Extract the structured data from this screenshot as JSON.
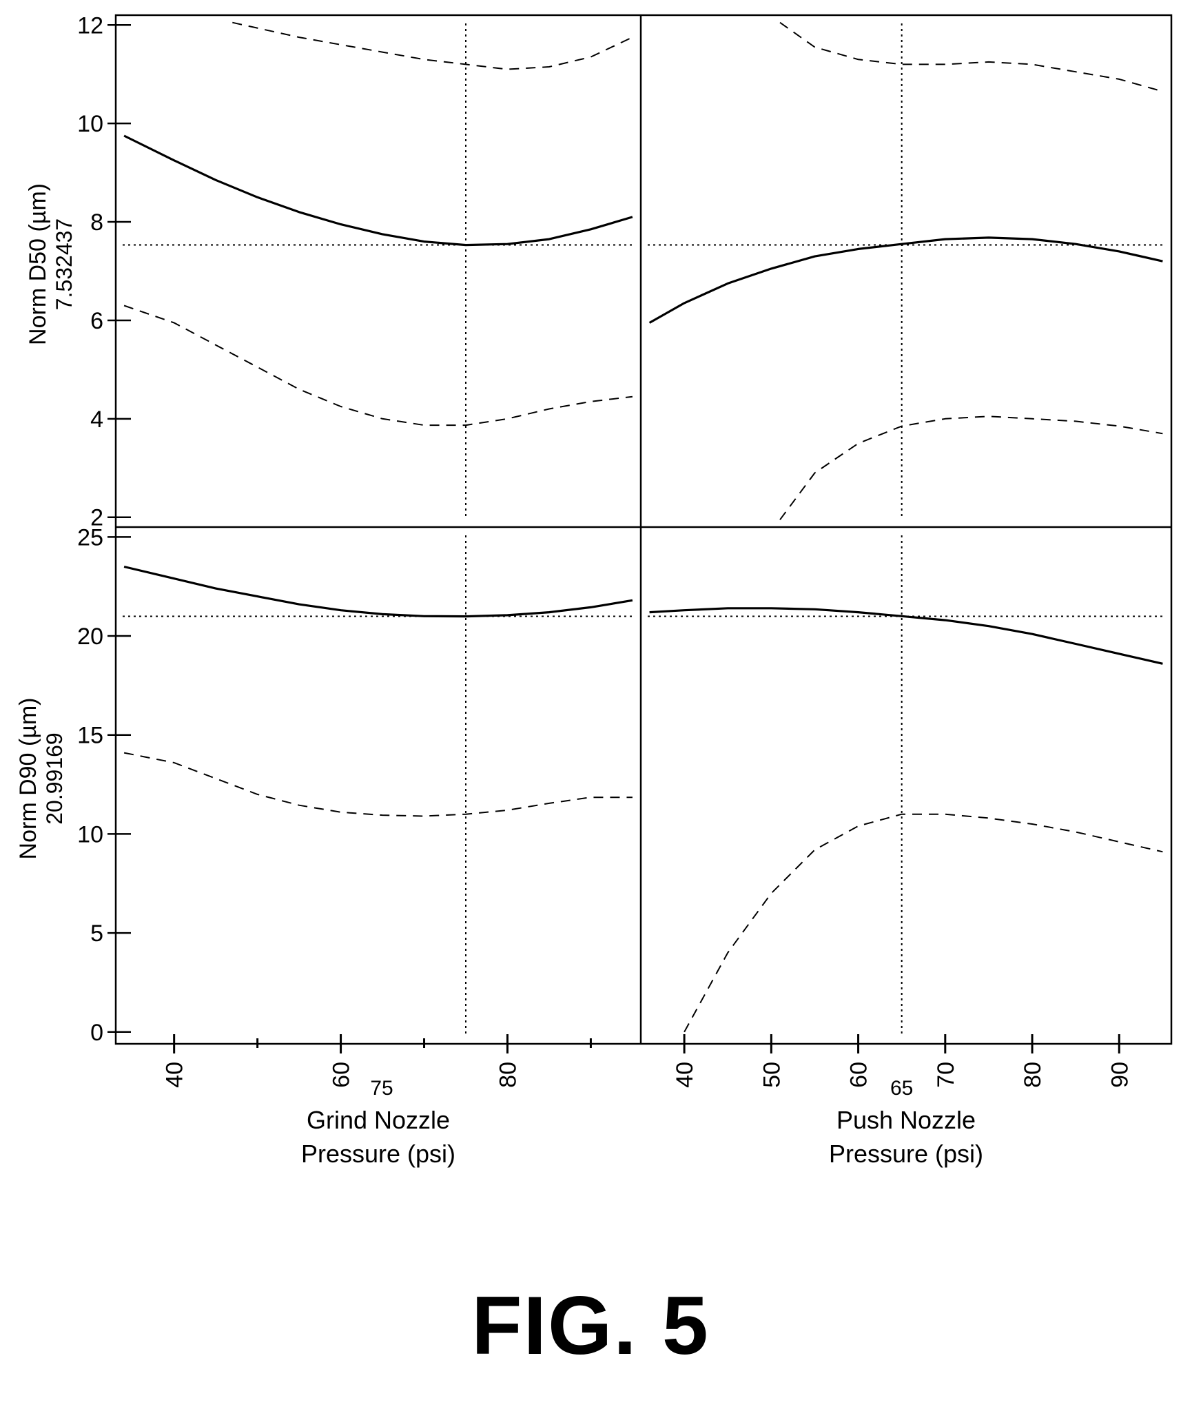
{
  "figure_caption": "FIG. 5",
  "chart_data": {
    "type": "line",
    "layout": "2x2 grid",
    "x_axes": [
      {
        "label_line1": "Grind Nozzle",
        "label_line2": "Pressure (psi)",
        "range": [
          33,
          96
        ],
        "ticks": [
          40,
          60,
          80
        ],
        "tick_labels": [
          "40",
          "60",
          "80"
        ],
        "minor_ticks": [
          50,
          70,
          90
        ],
        "current_value": 75,
        "current_label": "75"
      },
      {
        "label_line1": "Push Nozzle",
        "label_line2": "Pressure (psi)",
        "range": [
          35,
          96
        ],
        "ticks": [
          40,
          50,
          60,
          70,
          80,
          90
        ],
        "tick_labels": [
          "40",
          "50",
          "60",
          "70",
          "80",
          "90"
        ],
        "minor_ticks": [],
        "current_value": 65,
        "current_label": "65"
      }
    ],
    "y_axes": [
      {
        "label": "Norm D50 (µm)",
        "current_label": "7.532437",
        "current_value": 7.532437,
        "range": [
          1.8,
          12.2
        ],
        "ticks": [
          2,
          4,
          6,
          8,
          10,
          12
        ],
        "tick_labels": [
          "2",
          "4",
          "6",
          "8",
          "10",
          "12"
        ]
      },
      {
        "label": "Norm D90 (µm)",
        "current_label": "20.99169",
        "current_value": 20.99169,
        "range": [
          -0.6,
          25.5
        ],
        "ticks": [
          0,
          5,
          10,
          15,
          20,
          25
        ],
        "tick_labels": [
          "0",
          "5",
          "10",
          "15",
          "20",
          "25"
        ]
      }
    ],
    "panels": [
      {
        "row": 0,
        "col": 0,
        "series": [
          {
            "role": "prediction",
            "style": "solid",
            "x": [
              34,
              40,
              45,
              50,
              55,
              60,
              65,
              70,
              75,
              80,
              85,
              90,
              95
            ],
            "y": [
              9.75,
              9.25,
              8.85,
              8.5,
              8.2,
              7.95,
              7.75,
              7.6,
              7.53,
              7.55,
              7.65,
              7.85,
              8.1
            ]
          },
          {
            "role": "upper_ci",
            "style": "dashed",
            "x": [
              47,
              55,
              60,
              65,
              70,
              75,
              80,
              85,
              90,
              95
            ],
            "y": [
              12.05,
              11.75,
              11.6,
              11.45,
              11.3,
              11.2,
              11.1,
              11.15,
              11.35,
              11.75
            ]
          },
          {
            "role": "lower_ci",
            "style": "dashed",
            "x": [
              34,
              40,
              45,
              50,
              55,
              60,
              65,
              70,
              75,
              80,
              85,
              90,
              95
            ],
            "y": [
              6.3,
              5.95,
              5.5,
              5.05,
              4.6,
              4.25,
              4.0,
              3.87,
              3.87,
              4.0,
              4.2,
              4.35,
              4.45
            ]
          }
        ]
      },
      {
        "row": 0,
        "col": 1,
        "series": [
          {
            "role": "prediction",
            "style": "solid",
            "x": [
              36,
              40,
              45,
              50,
              55,
              60,
              65,
              70,
              75,
              80,
              85,
              90,
              95
            ],
            "y": [
              5.95,
              6.35,
              6.75,
              7.05,
              7.3,
              7.45,
              7.55,
              7.65,
              7.68,
              7.65,
              7.55,
              7.4,
              7.2
            ]
          },
          {
            "role": "upper_ci",
            "style": "dashed",
            "x": [
              51,
              55,
              60,
              65,
              70,
              75,
              80,
              85,
              90,
              95
            ],
            "y": [
              12.05,
              11.55,
              11.3,
              11.2,
              11.2,
              11.25,
              11.2,
              11.05,
              10.9,
              10.65
            ]
          },
          {
            "role": "lower_ci",
            "style": "dashed",
            "x": [
              51,
              55,
              60,
              65,
              70,
              75,
              80,
              85,
              90,
              95
            ],
            "y": [
              1.95,
              2.9,
              3.5,
              3.85,
              4.0,
              4.05,
              4.0,
              3.95,
              3.85,
              3.7
            ]
          }
        ]
      },
      {
        "row": 1,
        "col": 0,
        "series": [
          {
            "role": "prediction",
            "style": "solid",
            "x": [
              34,
              40,
              45,
              50,
              55,
              60,
              65,
              70,
              75,
              80,
              85,
              90,
              95
            ],
            "y": [
              23.5,
              22.9,
              22.4,
              22.0,
              21.6,
              21.3,
              21.1,
              21.0,
              20.99,
              21.05,
              21.2,
              21.45,
              21.8
            ]
          },
          {
            "role": "upper_ci",
            "style": "dashed",
            "x": [],
            "y": []
          },
          {
            "role": "lower_ci",
            "style": "dashed",
            "x": [
              34,
              40,
              45,
              50,
              55,
              60,
              65,
              70,
              75,
              80,
              85,
              90,
              95
            ],
            "y": [
              14.1,
              13.6,
              12.8,
              12.0,
              11.45,
              11.1,
              10.95,
              10.9,
              11.0,
              11.2,
              11.55,
              11.85,
              11.85
            ]
          }
        ]
      },
      {
        "row": 1,
        "col": 1,
        "series": [
          {
            "role": "prediction",
            "style": "solid",
            "x": [
              36,
              40,
              45,
              50,
              55,
              60,
              65,
              70,
              75,
              80,
              85,
              90,
              95
            ],
            "y": [
              21.2,
              21.3,
              21.4,
              21.4,
              21.35,
              21.2,
              21.0,
              20.8,
              20.5,
              20.1,
              19.6,
              19.1,
              18.6
            ]
          },
          {
            "role": "upper_ci",
            "style": "dashed",
            "x": [],
            "y": []
          },
          {
            "role": "lower_ci",
            "style": "dashed",
            "x": [
              40,
              45,
              50,
              55,
              60,
              65,
              70,
              75,
              80,
              85,
              90,
              95
            ],
            "y": [
              0.0,
              4.0,
              7.0,
              9.2,
              10.4,
              11.0,
              11.0,
              10.8,
              10.5,
              10.1,
              9.6,
              9.1
            ]
          }
        ]
      }
    ]
  }
}
